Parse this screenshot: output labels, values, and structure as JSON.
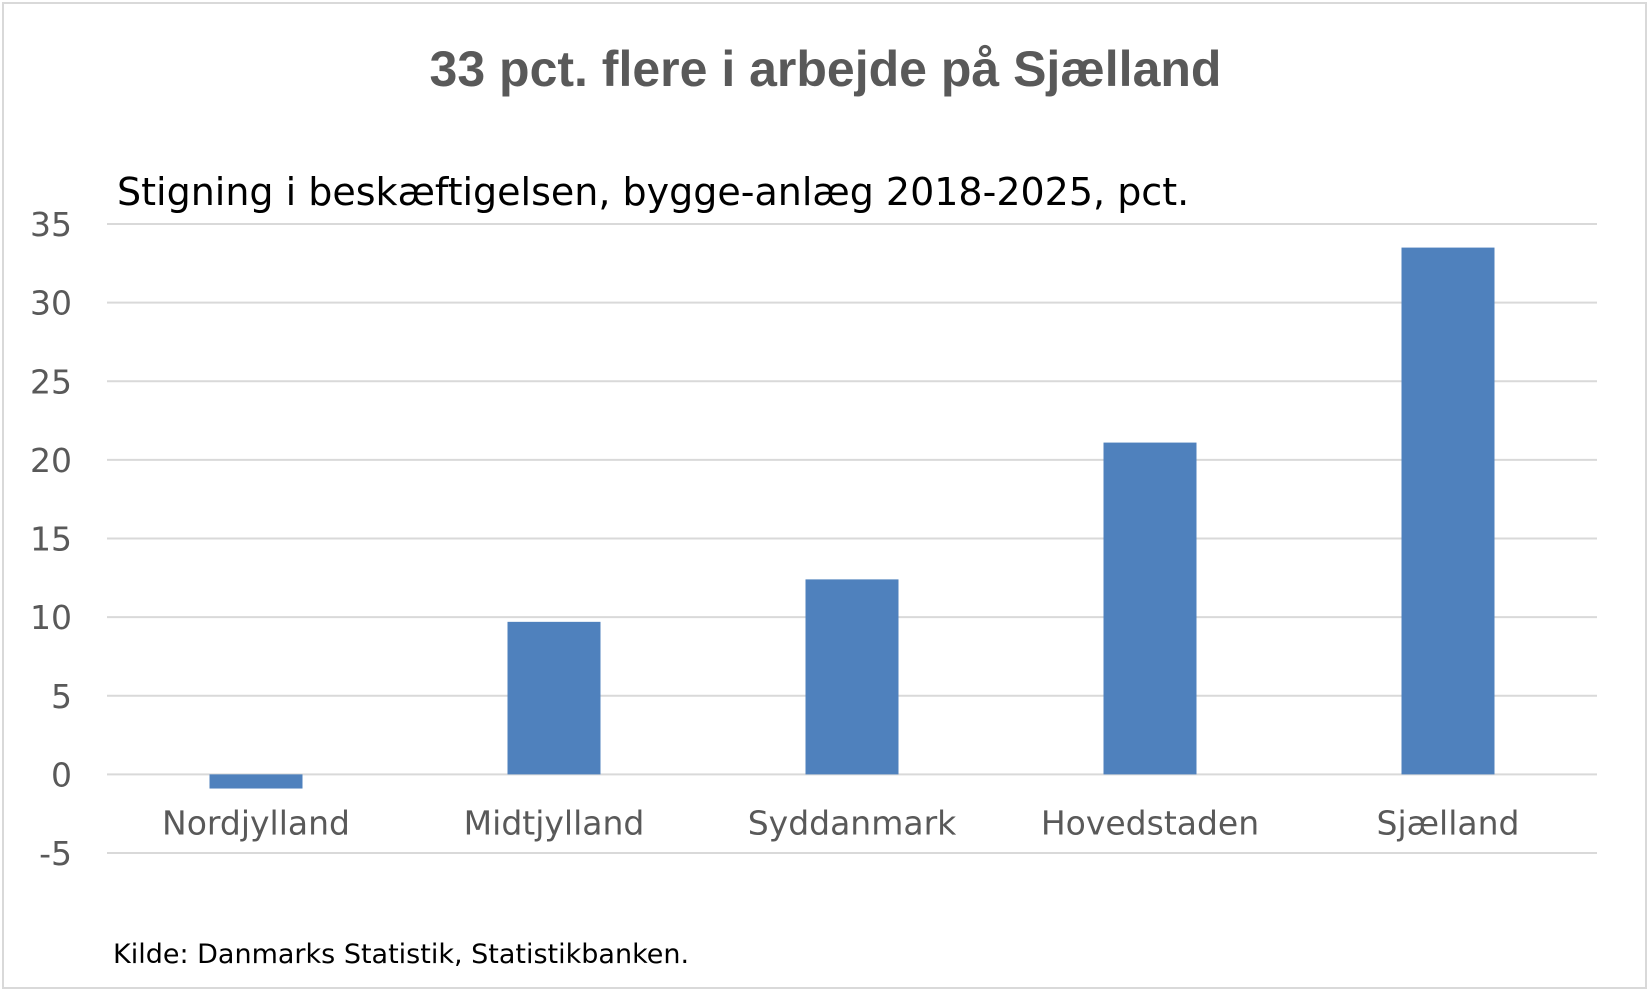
{
  "title": "33 pct. flere i arbejde på Sjælland",
  "subtitle": "Stigning i beskæftigelsen, bygge-anlæg 2018-2025, pct.",
  "source": "Kilde: Danmarks Statistik, Statistikbanken.",
  "chart_data": {
    "type": "bar",
    "title": "33 pct. flere i arbejde på Sjælland",
    "subtitle": "Stigning i beskæftigelsen, bygge-anlæg 2018-2025, pct.",
    "categories": [
      "Nordjylland",
      "Midtjylland",
      "Syddanmark",
      "Hovedstaden",
      "Sjælland"
    ],
    "values": [
      -0.9,
      9.7,
      12.4,
      21.1,
      33.5
    ],
    "ylim": [
      -5,
      35
    ],
    "yticks": [
      -5,
      0,
      5,
      10,
      15,
      20,
      25,
      30,
      35
    ],
    "grid": true,
    "legend": "none",
    "bar_color": "#4f81bd",
    "grid_color": "#d9d9d9"
  }
}
